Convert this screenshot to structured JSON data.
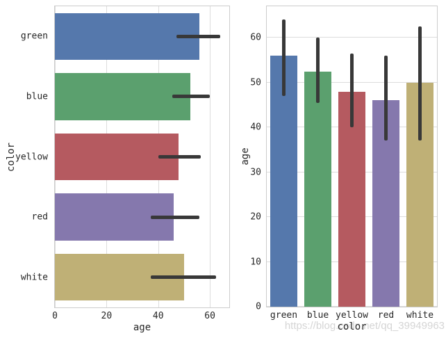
{
  "figure": {
    "background": "#ffffff",
    "watermark": "https://blog.csdn.net/qq_39949963"
  },
  "style": {
    "grid_color": "#dcdcdc",
    "spine_color": "#cccccc",
    "error_bar_color": "#383838",
    "text_color": "#262626",
    "watermark_color": "#d5d5d5"
  },
  "chart_data": [
    {
      "id": "left-plot",
      "type": "bar",
      "orientation": "horizontal",
      "title": "",
      "xlabel": "age",
      "ylabel": "color",
      "categories": [
        "green",
        "blue",
        "yellow",
        "red",
        "white"
      ],
      "values": [
        56,
        52.5,
        48,
        46,
        50
      ],
      "error_low": [
        47,
        45.5,
        40,
        37,
        37
      ],
      "error_high": [
        64,
        60,
        56.5,
        56,
        62.5
      ],
      "bar_colors": [
        "#5578AC",
        "#5BA06E",
        "#B55A60",
        "#8578AD",
        "#BFB076"
      ],
      "value_range": [
        0,
        67.5
      ],
      "ticks": [
        0,
        20,
        40,
        60
      ],
      "grid": true,
      "legend": null
    },
    {
      "id": "right-plot",
      "type": "bar",
      "orientation": "vertical",
      "title": "",
      "xlabel": "color",
      "ylabel": "age",
      "categories": [
        "green",
        "blue",
        "yellow",
        "red",
        "white"
      ],
      "values": [
        56,
        52.5,
        48,
        46,
        50
      ],
      "error_low": [
        47,
        45.5,
        40,
        37,
        37
      ],
      "error_high": [
        64,
        60,
        56.5,
        56,
        62.5
      ],
      "bar_colors": [
        "#5578AC",
        "#5BA06E",
        "#B55A60",
        "#8578AD",
        "#BFB076"
      ],
      "value_range": [
        0,
        67
      ],
      "ticks": [
        0,
        10,
        20,
        30,
        40,
        50,
        60
      ],
      "grid": true,
      "legend": null
    }
  ]
}
